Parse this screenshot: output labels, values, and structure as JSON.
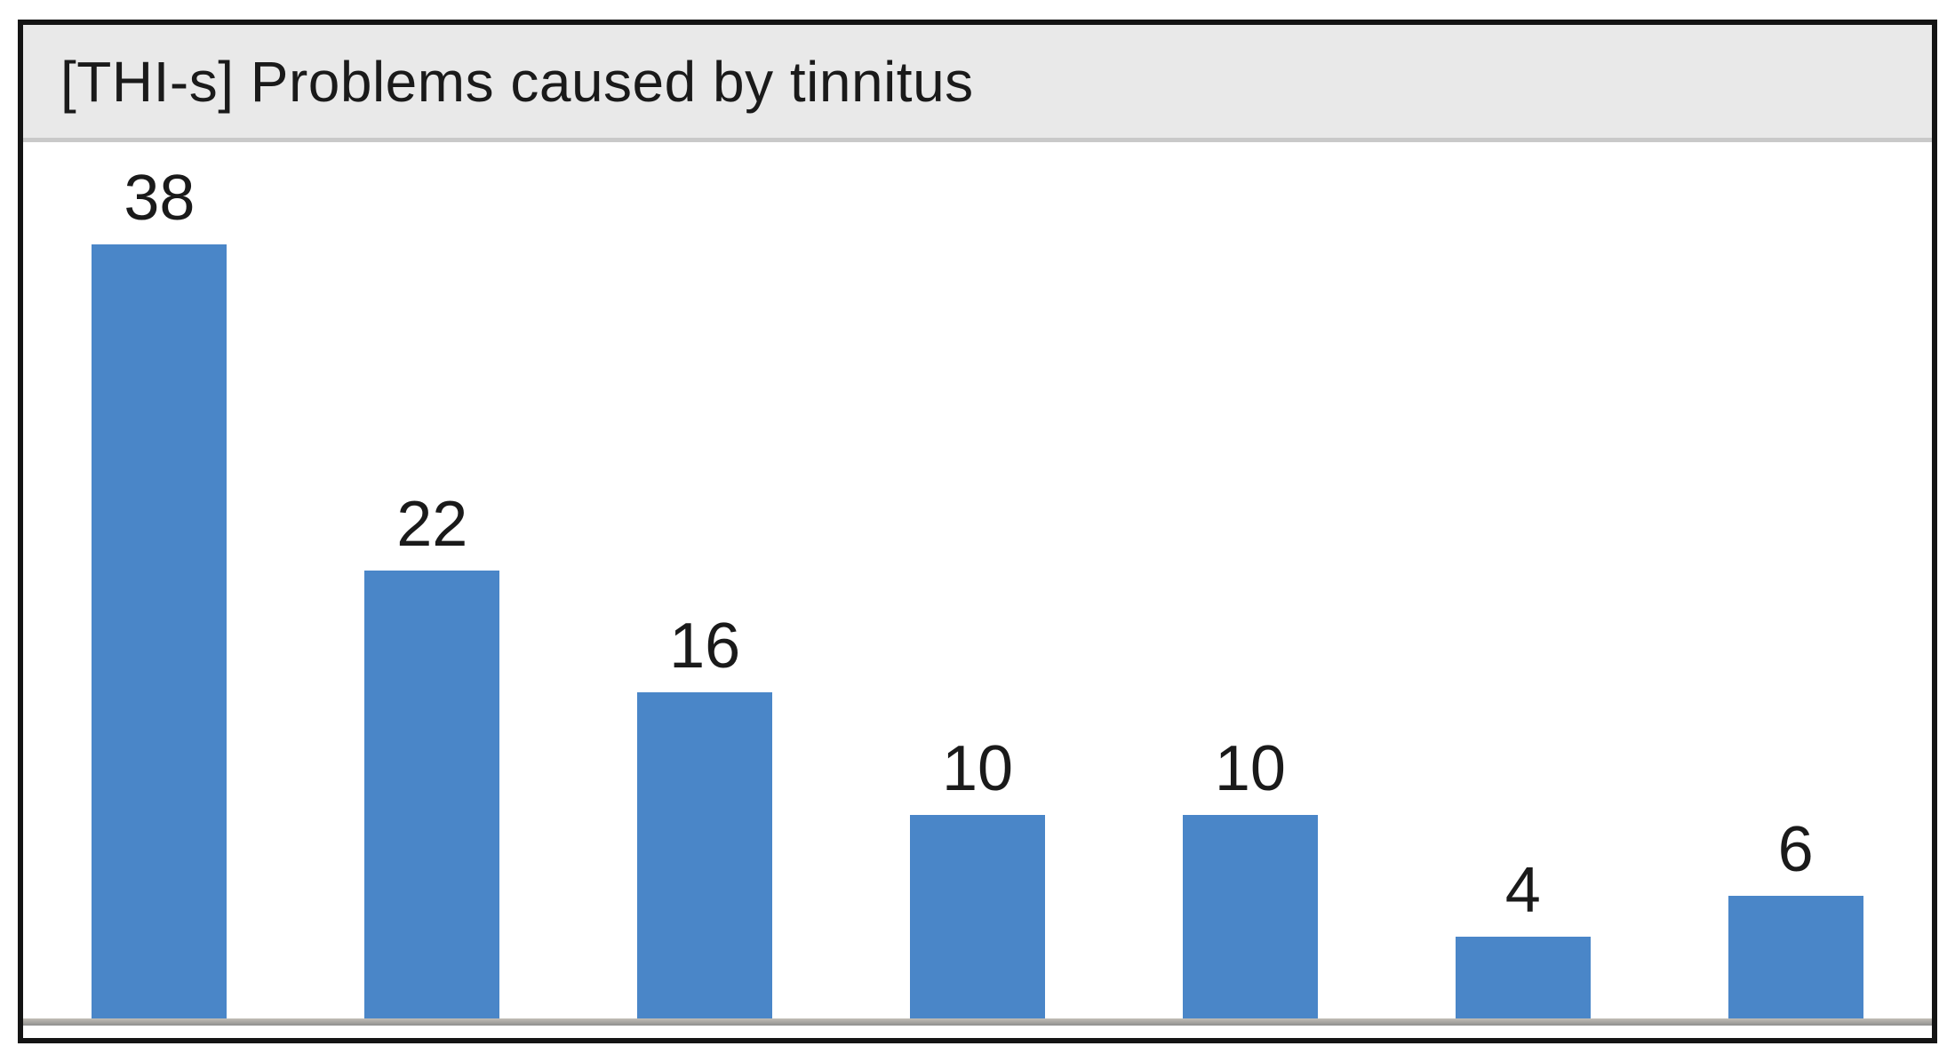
{
  "chart_data": {
    "type": "bar",
    "title": "[THI-s] Problems caused by tinnitus",
    "values": [
      38,
      22,
      16,
      10,
      10,
      4,
      6
    ],
    "data_labels": [
      "38",
      "22",
      "16",
      "10",
      "10",
      "4",
      "6"
    ],
    "xlabel": "",
    "ylabel": "",
    "ylim": [
      0,
      43
    ],
    "grid": false,
    "legend": "none",
    "bar_color": "#4a86c8"
  },
  "colors": {
    "bar": "#4a86c8",
    "title_bar_bg": "#e9e9e9",
    "title_separator": "#c9c9c9",
    "frame_border": "#141414",
    "axis_baseline": "#8f8f8f",
    "label_text": "#1a1a1a"
  }
}
